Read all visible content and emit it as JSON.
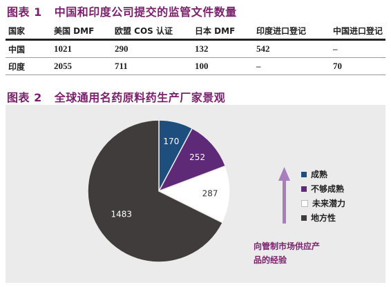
{
  "table1": {
    "number": "图表 1",
    "title": "中国和印度公司提交的监管文件数量",
    "headers": [
      "国家",
      "美国 DMF",
      "欧盟 COS 认证",
      "日本 DMF",
      "印度进口登记",
      "中国进口登记"
    ],
    "rows": [
      [
        "中国",
        "1021",
        "290",
        "132",
        "542",
        "–"
      ],
      [
        "印度",
        "2055",
        "711",
        "100",
        "–",
        "70"
      ]
    ]
  },
  "figure2": {
    "number": "图表 2",
    "title": "全球通用名药原料药生产厂家景观",
    "arrow_note": "向管制市场供应产品的经验",
    "arrow_color": "#a87fbd"
  },
  "chart_data": {
    "type": "pie",
    "labels": [
      "成熟",
      "不够成熟",
      "未来潜力",
      "地方性"
    ],
    "values": [
      170,
      252,
      287,
      1483
    ],
    "colors": [
      "#1d4e7d",
      "#5e2a78",
      "#ffffff",
      "#403c3c"
    ],
    "label_colors": [
      "#ffffff",
      "#ffffff",
      "#333333",
      "#ffffff"
    ],
    "legend": {
      "position": "right"
    }
  }
}
